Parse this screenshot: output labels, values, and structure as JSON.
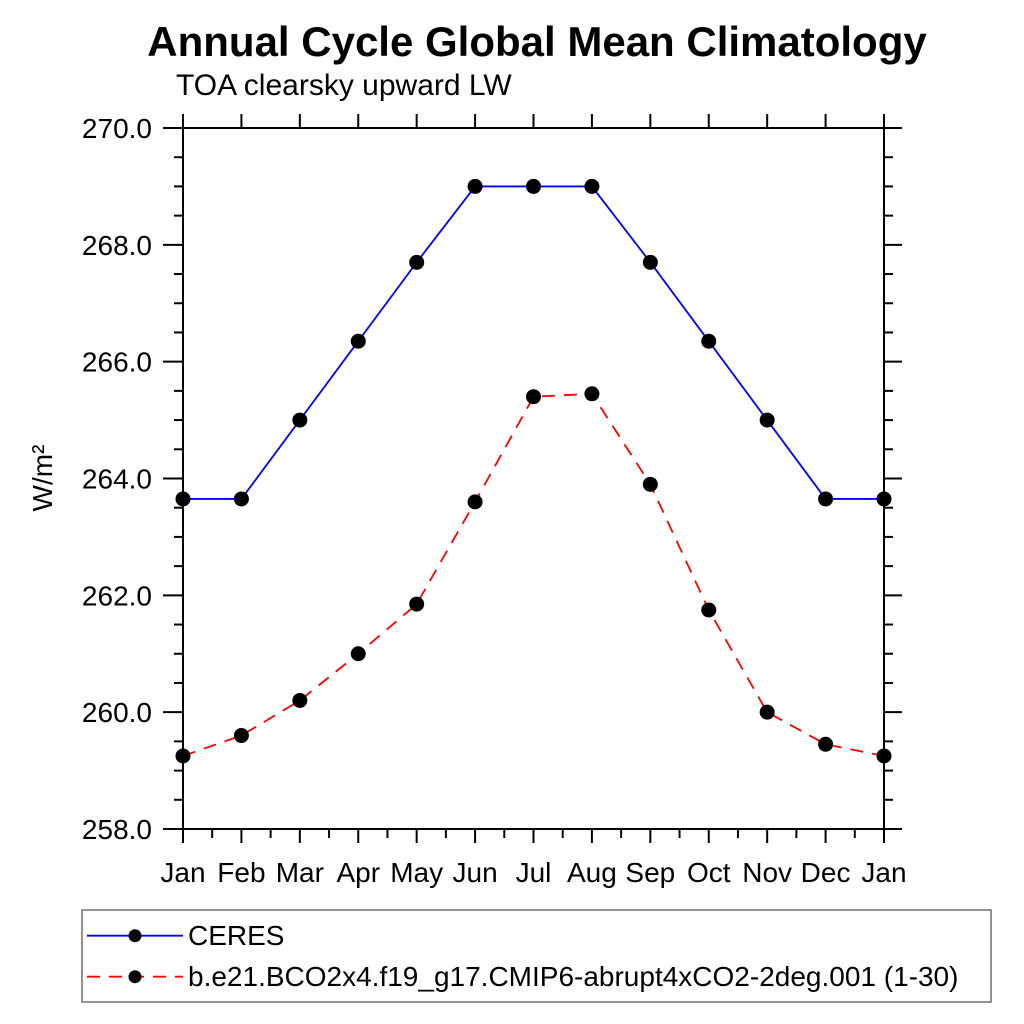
{
  "chart": {
    "title": "Annual Cycle Global Mean Climatology",
    "subtitle": "TOA clearsky upward LW",
    "ylabel": "W/m²"
  },
  "chart_data": {
    "type": "line",
    "title": "Annual Cycle Global Mean Climatology",
    "subtitle": "TOA clearsky upward LW",
    "xlabel": "",
    "ylabel": "W/m2",
    "x_categories": [
      "Jan",
      "Feb",
      "Mar",
      "Apr",
      "May",
      "Jun",
      "Jul",
      "Aug",
      "Sep",
      "Oct",
      "Nov",
      "Dec",
      "Jan"
    ],
    "ylim": [
      258.0,
      270.0
    ],
    "ytick_major_interval": 2.0,
    "ytick_minor_interval": 0.5,
    "ytick_labels": [
      "258.0",
      "260.0",
      "262.0",
      "264.0",
      "266.0",
      "268.0",
      "270.0"
    ],
    "grid": false,
    "legend_position": "bottom-left-box",
    "marker_color": "#000000",
    "axis_color": "#000000",
    "series": [
      {
        "name": "CERES",
        "color": "#0000ff",
        "line_style": "solid",
        "marker": "filled-circle",
        "values": [
          263.65,
          263.65,
          265.0,
          266.35,
          267.7,
          269.0,
          269.0,
          269.0,
          267.7,
          266.35,
          265.0,
          263.65,
          263.65
        ]
      },
      {
        "name": "b.e21.BCO2x4.f19_g17.CMIP6-abrupt4xCO2-2deg.001 (1-30)",
        "color": "#ff0000",
        "line_style": "dashed",
        "marker": "filled-circle",
        "values": [
          259.25,
          259.6,
          260.2,
          261.0,
          261.85,
          263.6,
          265.4,
          265.45,
          263.9,
          261.75,
          260.0,
          259.45,
          259.25
        ]
      }
    ]
  }
}
